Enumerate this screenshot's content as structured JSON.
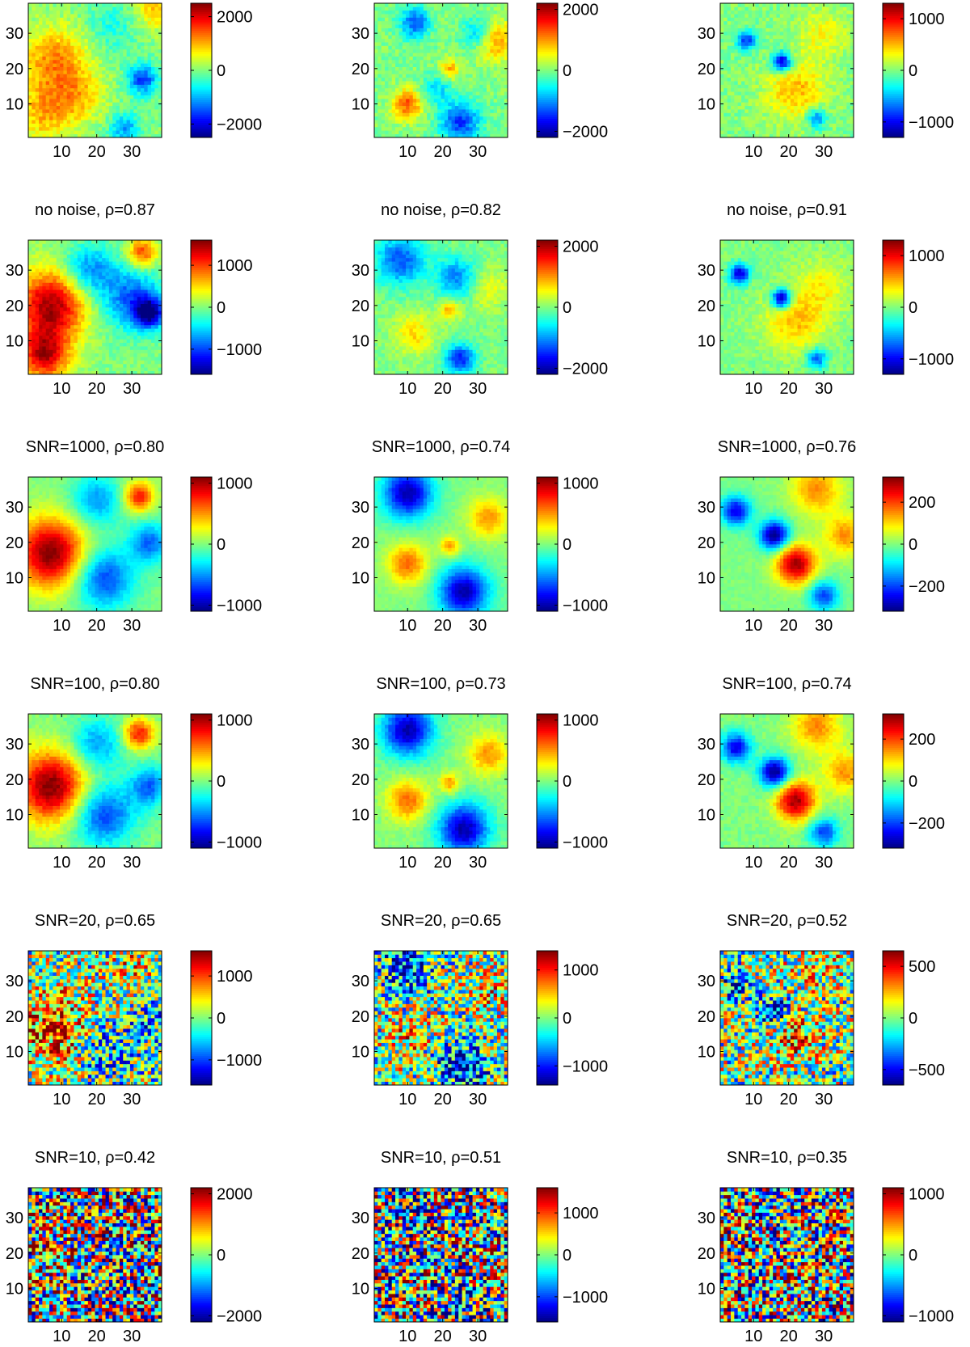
{
  "chart_data": [
    {
      "type": "heatmap",
      "row": 0,
      "col": 0,
      "title": "",
      "grid_size": 38,
      "xticks": [
        "10",
        "20",
        "30"
      ],
      "yticks": [
        "10",
        "20",
        "30"
      ],
      "colorbar": {
        "range": [
          -2500,
          2500
        ],
        "ticks": [
          2000,
          0,
          -2000
        ],
        "tick_labels": [
          "2000",
          "0",
          "−2000"
        ]
      },
      "hotspots": [
        {
          "x": 8,
          "y": 22,
          "v": 1200,
          "s": 7
        },
        {
          "x": 5,
          "y": 7,
          "v": 900,
          "s": 6
        },
        {
          "x": 15,
          "y": 12,
          "v": 700,
          "s": 5
        },
        {
          "x": 37,
          "y": 37,
          "v": 1000,
          "s": 4
        },
        {
          "x": 33,
          "y": 17,
          "v": -1600,
          "s": 3
        },
        {
          "x": 28,
          "y": 3,
          "v": -1100,
          "s": 3
        },
        {
          "x": 24,
          "y": 32,
          "v": -500,
          "s": 5
        }
      ]
    },
    {
      "type": "heatmap",
      "row": 0,
      "col": 1,
      "title": "",
      "grid_size": 38,
      "xticks": [
        "10",
        "20",
        "30"
      ],
      "yticks": [
        "10",
        "20",
        "30"
      ],
      "colorbar": {
        "range": [
          -2200,
          2200
        ],
        "ticks": [
          2000,
          0,
          -2000
        ],
        "tick_labels": [
          "2000",
          "0",
          "−2000"
        ]
      },
      "hotspots": [
        {
          "x": 10,
          "y": 10,
          "v": 1300,
          "s": 3
        },
        {
          "x": 35,
          "y": 28,
          "v": 1000,
          "s": 4
        },
        {
          "x": 22,
          "y": 20,
          "v": 900,
          "s": 2
        },
        {
          "x": 12,
          "y": 33,
          "v": -1300,
          "s": 3
        },
        {
          "x": 25,
          "y": 5,
          "v": -1400,
          "s": 4
        },
        {
          "x": 30,
          "y": 30,
          "v": -900,
          "s": 3
        },
        {
          "x": 18,
          "y": 14,
          "v": -700,
          "s": 3
        }
      ]
    },
    {
      "type": "heatmap",
      "row": 0,
      "col": 2,
      "title": "",
      "grid_size": 38,
      "xticks": [
        "10",
        "20",
        "30"
      ],
      "yticks": [
        "10",
        "20",
        "30"
      ],
      "colorbar": {
        "range": [
          -1300,
          1300
        ],
        "ticks": [
          1000,
          0,
          -1000
        ],
        "tick_labels": [
          "1000",
          "0",
          "−1000"
        ]
      },
      "hotspots": [
        {
          "x": 18,
          "y": 22,
          "v": -1200,
          "s": 2
        },
        {
          "x": 8,
          "y": 28,
          "v": -800,
          "s": 2
        },
        {
          "x": 28,
          "y": 6,
          "v": -700,
          "s": 2
        },
        {
          "x": 22,
          "y": 14,
          "v": 500,
          "s": 6
        },
        {
          "x": 30,
          "y": 30,
          "v": 300,
          "s": 5
        }
      ]
    },
    {
      "type": "heatmap",
      "row": 1,
      "col": 0,
      "title": "no noise, ρ=0.87",
      "grid_size": 38,
      "xticks": [
        "10",
        "20",
        "30"
      ],
      "yticks": [
        "10",
        "20",
        "30"
      ],
      "colorbar": {
        "range": [
          -1600,
          1600
        ],
        "ticks": [
          1000,
          0,
          -1000
        ],
        "tick_labels": [
          "1000",
          "0",
          "−1000"
        ]
      },
      "hotspots": [
        {
          "x": 7,
          "y": 20,
          "v": 1500,
          "s": 7
        },
        {
          "x": 5,
          "y": 6,
          "v": 1300,
          "s": 5
        },
        {
          "x": 33,
          "y": 35,
          "v": 1000,
          "s": 3
        },
        {
          "x": 30,
          "y": 22,
          "v": -900,
          "s": 6
        },
        {
          "x": 18,
          "y": 30,
          "v": -800,
          "s": 5
        },
        {
          "x": 35,
          "y": 18,
          "v": -1400,
          "s": 3
        }
      ]
    },
    {
      "type": "heatmap",
      "row": 1,
      "col": 1,
      "title": "no noise, ρ=0.82",
      "grid_size": 38,
      "xticks": [
        "10",
        "20",
        "30"
      ],
      "yticks": [
        "10",
        "20",
        "30"
      ],
      "colorbar": {
        "range": [
          -2200,
          2200
        ],
        "ticks": [
          2000,
          0,
          -2000
        ],
        "tick_labels": [
          "2000",
          "0",
          "−2000"
        ]
      },
      "hotspots": [
        {
          "x": 22,
          "y": 19,
          "v": 900,
          "s": 2
        },
        {
          "x": 12,
          "y": 12,
          "v": 700,
          "s": 4
        },
        {
          "x": 8,
          "y": 33,
          "v": -1300,
          "s": 5
        },
        {
          "x": 24,
          "y": 28,
          "v": -1100,
          "s": 4
        },
        {
          "x": 25,
          "y": 5,
          "v": -1500,
          "s": 3
        },
        {
          "x": 33,
          "y": 25,
          "v": 500,
          "s": 4
        }
      ]
    },
    {
      "type": "heatmap",
      "row": 1,
      "col": 2,
      "title": "no noise, ρ=0.91",
      "grid_size": 38,
      "xticks": [
        "10",
        "20",
        "30"
      ],
      "yticks": [
        "10",
        "20",
        "30"
      ],
      "colorbar": {
        "range": [
          -1300,
          1300
        ],
        "ticks": [
          1000,
          0,
          -1000
        ],
        "tick_labels": [
          "1000",
          "0",
          "−1000"
        ]
      },
      "hotspots": [
        {
          "x": 18,
          "y": 22,
          "v": -1300,
          "s": 2
        },
        {
          "x": 6,
          "y": 29,
          "v": -1100,
          "s": 2
        },
        {
          "x": 28,
          "y": 5,
          "v": -800,
          "s": 2
        },
        {
          "x": 22,
          "y": 16,
          "v": 500,
          "s": 6
        },
        {
          "x": 30,
          "y": 26,
          "v": 300,
          "s": 5
        }
      ]
    },
    {
      "type": "heatmap",
      "row": 2,
      "col": 0,
      "title": "SNR=1000, ρ=0.80",
      "grid_size": 38,
      "xticks": [
        "10",
        "20",
        "30"
      ],
      "yticks": [
        "10",
        "20",
        "30"
      ],
      "colorbar": {
        "range": [
          -1100,
          1100
        ],
        "ticks": [
          1000,
          0,
          -1000
        ],
        "tick_labels": [
          "1000",
          "0",
          "−1000"
        ]
      },
      "hotspots": [
        {
          "x": 7,
          "y": 17,
          "v": 1100,
          "s": 7
        },
        {
          "x": 32,
          "y": 33,
          "v": 800,
          "s": 3
        },
        {
          "x": 22,
          "y": 10,
          "v": -700,
          "s": 6
        },
        {
          "x": 35,
          "y": 20,
          "v": -600,
          "s": 4
        },
        {
          "x": 20,
          "y": 32,
          "v": -500,
          "s": 5
        }
      ]
    },
    {
      "type": "heatmap",
      "row": 2,
      "col": 1,
      "title": "SNR=1000, ρ=0.74",
      "grid_size": 38,
      "xticks": [
        "10",
        "20",
        "30"
      ],
      "yticks": [
        "10",
        "20",
        "30"
      ],
      "colorbar": {
        "range": [
          -1100,
          1100
        ],
        "ticks": [
          1000,
          0,
          -1000
        ],
        "tick_labels": [
          "1000",
          "0",
          "−1000"
        ]
      },
      "hotspots": [
        {
          "x": 10,
          "y": 34,
          "v": -1000,
          "s": 5
        },
        {
          "x": 26,
          "y": 6,
          "v": -1000,
          "s": 5
        },
        {
          "x": 10,
          "y": 14,
          "v": 600,
          "s": 4
        },
        {
          "x": 22,
          "y": 19,
          "v": 500,
          "s": 2
        },
        {
          "x": 33,
          "y": 27,
          "v": 500,
          "s": 4
        }
      ]
    },
    {
      "type": "heatmap",
      "row": 2,
      "col": 2,
      "title": "SNR=1000, ρ=0.76",
      "grid_size": 38,
      "xticks": [
        "10",
        "20",
        "30"
      ],
      "yticks": [
        "10",
        "20",
        "30"
      ],
      "colorbar": {
        "range": [
          -320,
          320
        ],
        "ticks": [
          200,
          0,
          -200
        ],
        "tick_labels": [
          "200",
          "0",
          "−200"
        ]
      },
      "hotspots": [
        {
          "x": 16,
          "y": 22,
          "v": -320,
          "s": 3
        },
        {
          "x": 5,
          "y": 29,
          "v": -250,
          "s": 3
        },
        {
          "x": 30,
          "y": 5,
          "v": -200,
          "s": 3
        },
        {
          "x": 22,
          "y": 14,
          "v": 300,
          "s": 4
        },
        {
          "x": 28,
          "y": 35,
          "v": 150,
          "s": 5
        },
        {
          "x": 36,
          "y": 22,
          "v": 150,
          "s": 4
        }
      ]
    },
    {
      "type": "heatmap",
      "row": 3,
      "col": 0,
      "title": "SNR=100, ρ=0.80",
      "grid_size": 38,
      "xticks": [
        "10",
        "20",
        "30"
      ],
      "yticks": [
        "10",
        "20",
        "30"
      ],
      "colorbar": {
        "range": [
          -1100,
          1100
        ],
        "ticks": [
          1000,
          0,
          -1000
        ],
        "tick_labels": [
          "1000",
          "0",
          "−1000"
        ]
      },
      "hotspots": [
        {
          "x": 7,
          "y": 18,
          "v": 1100,
          "s": 7
        },
        {
          "x": 32,
          "y": 33,
          "v": 800,
          "s": 3
        },
        {
          "x": 22,
          "y": 10,
          "v": -700,
          "s": 6
        },
        {
          "x": 35,
          "y": 18,
          "v": -600,
          "s": 4
        },
        {
          "x": 20,
          "y": 30,
          "v": -500,
          "s": 5
        }
      ]
    },
    {
      "type": "heatmap",
      "row": 3,
      "col": 1,
      "title": "SNR=100, ρ=0.73",
      "grid_size": 38,
      "xticks": [
        "10",
        "20",
        "30"
      ],
      "yticks": [
        "10",
        "20",
        "30"
      ],
      "colorbar": {
        "range": [
          -1100,
          1100
        ],
        "ticks": [
          1000,
          0,
          -1000
        ],
        "tick_labels": [
          "1000",
          "0",
          "−1000"
        ]
      },
      "hotspots": [
        {
          "x": 10,
          "y": 34,
          "v": -1000,
          "s": 5
        },
        {
          "x": 26,
          "y": 6,
          "v": -1000,
          "s": 5
        },
        {
          "x": 10,
          "y": 14,
          "v": 600,
          "s": 4
        },
        {
          "x": 22,
          "y": 19,
          "v": 500,
          "s": 2
        },
        {
          "x": 33,
          "y": 27,
          "v": 500,
          "s": 4
        }
      ]
    },
    {
      "type": "heatmap",
      "row": 3,
      "col": 2,
      "title": "SNR=100, ρ=0.74",
      "grid_size": 38,
      "xticks": [
        "10",
        "20",
        "30"
      ],
      "yticks": [
        "10",
        "20",
        "30"
      ],
      "colorbar": {
        "range": [
          -320,
          320
        ],
        "ticks": [
          200,
          0,
          -200
        ],
        "tick_labels": [
          "200",
          "0",
          "−200"
        ]
      },
      "hotspots": [
        {
          "x": 16,
          "y": 22,
          "v": -320,
          "s": 3
        },
        {
          "x": 5,
          "y": 29,
          "v": -250,
          "s": 3
        },
        {
          "x": 30,
          "y": 5,
          "v": -200,
          "s": 3
        },
        {
          "x": 22,
          "y": 14,
          "v": 300,
          "s": 4
        },
        {
          "x": 28,
          "y": 35,
          "v": 150,
          "s": 5
        },
        {
          "x": 36,
          "y": 22,
          "v": 150,
          "s": 4
        }
      ]
    },
    {
      "type": "heatmap",
      "row": 4,
      "col": 0,
      "title": "SNR=20, ρ=0.65",
      "grid_size": 38,
      "xticks": [
        "10",
        "20",
        "30"
      ],
      "yticks": [
        "10",
        "20",
        "30"
      ],
      "colorbar": {
        "range": [
          -1600,
          1600
        ],
        "ticks": [
          1000,
          0,
          -1000
        ],
        "tick_labels": [
          "1000",
          "0",
          "−1000"
        ]
      },
      "hotspots": [
        {
          "x": 8,
          "y": 17,
          "v": 1100,
          "s": 7
        },
        {
          "x": 30,
          "y": 33,
          "v": 500,
          "s": 4
        },
        {
          "x": 22,
          "y": 10,
          "v": -600,
          "s": 6
        },
        {
          "x": 35,
          "y": 18,
          "v": -500,
          "s": 4
        }
      ]
    },
    {
      "type": "heatmap",
      "row": 4,
      "col": 1,
      "title": "SNR=20, ρ=0.65",
      "grid_size": 38,
      "xticks": [
        "10",
        "20",
        "30"
      ],
      "yticks": [
        "10",
        "20",
        "30"
      ],
      "colorbar": {
        "range": [
          -1400,
          1400
        ],
        "ticks": [
          1000,
          0,
          -1000
        ],
        "tick_labels": [
          "1000",
          "0",
          "−1000"
        ]
      },
      "hotspots": [
        {
          "x": 10,
          "y": 34,
          "v": -1000,
          "s": 5
        },
        {
          "x": 26,
          "y": 6,
          "v": -1000,
          "s": 5
        },
        {
          "x": 10,
          "y": 14,
          "v": 500,
          "s": 4
        },
        {
          "x": 33,
          "y": 27,
          "v": 400,
          "s": 4
        }
      ]
    },
    {
      "type": "heatmap",
      "row": 4,
      "col": 2,
      "title": "SNR=20, ρ=0.52",
      "grid_size": 38,
      "xticks": [
        "10",
        "20",
        "30"
      ],
      "yticks": [
        "10",
        "20",
        "30"
      ],
      "colorbar": {
        "range": [
          -650,
          650
        ],
        "ticks": [
          500,
          0,
          -500
        ],
        "tick_labels": [
          "500",
          "0",
          "−500"
        ]
      },
      "hotspots": [
        {
          "x": 16,
          "y": 22,
          "v": -450,
          "s": 3
        },
        {
          "x": 5,
          "y": 29,
          "v": -350,
          "s": 3
        },
        {
          "x": 22,
          "y": 14,
          "v": 400,
          "s": 4
        },
        {
          "x": 28,
          "y": 35,
          "v": 200,
          "s": 5
        }
      ]
    },
    {
      "type": "heatmap",
      "row": 5,
      "col": 0,
      "title": "SNR=10, ρ=0.42",
      "grid_size": 38,
      "xticks": [
        "10",
        "20",
        "30"
      ],
      "yticks": [
        "10",
        "20",
        "30"
      ],
      "colorbar": {
        "range": [
          -2200,
          2200
        ],
        "ticks": [
          2000,
          0,
          -2000
        ],
        "tick_labels": [
          "2000",
          "0",
          "−2000"
        ]
      },
      "hotspots": [
        {
          "x": 8,
          "y": 17,
          "v": 800,
          "s": 7
        },
        {
          "x": 22,
          "y": 10,
          "v": -400,
          "s": 6
        }
      ]
    },
    {
      "type": "heatmap",
      "row": 5,
      "col": 1,
      "title": "SNR=10, ρ=0.51",
      "grid_size": 38,
      "xticks": [
        "10",
        "20",
        "30"
      ],
      "yticks": [
        "10",
        "20",
        "30"
      ],
      "colorbar": {
        "range": [
          -1600,
          1600
        ],
        "ticks": [
          1000,
          0,
          -1000
        ],
        "tick_labels": [
          "1000",
          "0",
          "−1000"
        ]
      },
      "hotspots": [
        {
          "x": 10,
          "y": 34,
          "v": -700,
          "s": 5
        },
        {
          "x": 26,
          "y": 6,
          "v": -700,
          "s": 5
        }
      ]
    },
    {
      "type": "heatmap",
      "row": 5,
      "col": 2,
      "title": "SNR=10, ρ=0.35",
      "grid_size": 38,
      "xticks": [
        "10",
        "20",
        "30"
      ],
      "yticks": [
        "10",
        "20",
        "30"
      ],
      "colorbar": {
        "range": [
          -1100,
          1100
        ],
        "ticks": [
          1000,
          0,
          -1000
        ],
        "tick_labels": [
          "1000",
          "0",
          "−1000"
        ]
      },
      "hotspots": [
        {
          "x": 16,
          "y": 22,
          "v": -300,
          "s": 3
        },
        {
          "x": 22,
          "y": 14,
          "v": 250,
          "s": 4
        }
      ]
    }
  ]
}
